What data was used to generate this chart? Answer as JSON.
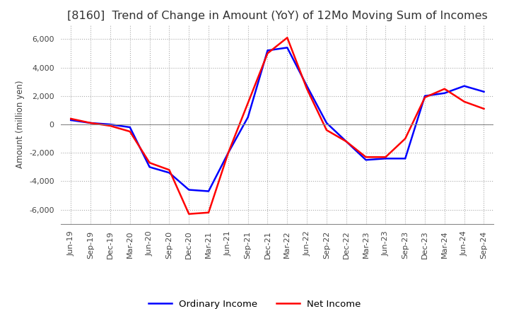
{
  "title": "[8160]  Trend of Change in Amount (YoY) of 12Mo Moving Sum of Incomes",
  "ylabel": "Amount (million yen)",
  "ylim": [
    -7000,
    7000
  ],
  "yticks": [
    -6000,
    -4000,
    -2000,
    0,
    2000,
    4000,
    6000
  ],
  "background_color": "#ffffff",
  "grid_color": "#aaaaaa",
  "x_labels": [
    "Jun-19",
    "Sep-19",
    "Dec-19",
    "Mar-20",
    "Jun-20",
    "Sep-20",
    "Dec-20",
    "Mar-21",
    "Jun-21",
    "Sep-21",
    "Dec-21",
    "Mar-22",
    "Jun-22",
    "Sep-22",
    "Dec-22",
    "Mar-23",
    "Jun-23",
    "Sep-23",
    "Dec-23",
    "Mar-24",
    "Jun-24",
    "Sep-24"
  ],
  "ordinary_income": [
    300,
    100,
    0,
    -200,
    -3000,
    -3400,
    -4600,
    -4700,
    -2000,
    500,
    5200,
    5400,
    2700,
    100,
    -1200,
    -2500,
    -2400,
    -2400,
    2000,
    2200,
    2700,
    2300
  ],
  "net_income": [
    400,
    100,
    -100,
    -500,
    -2700,
    -3200,
    -6300,
    -6200,
    -2000,
    1500,
    5000,
    6100,
    2500,
    -400,
    -1200,
    -2300,
    -2300,
    -1000,
    1900,
    2500,
    1600,
    1100
  ],
  "ordinary_color": "#0000ff",
  "net_color": "#ff0000",
  "line_width": 1.8,
  "title_fontsize": 11.5,
  "legend_fontsize": 9.5,
  "tick_fontsize": 8
}
